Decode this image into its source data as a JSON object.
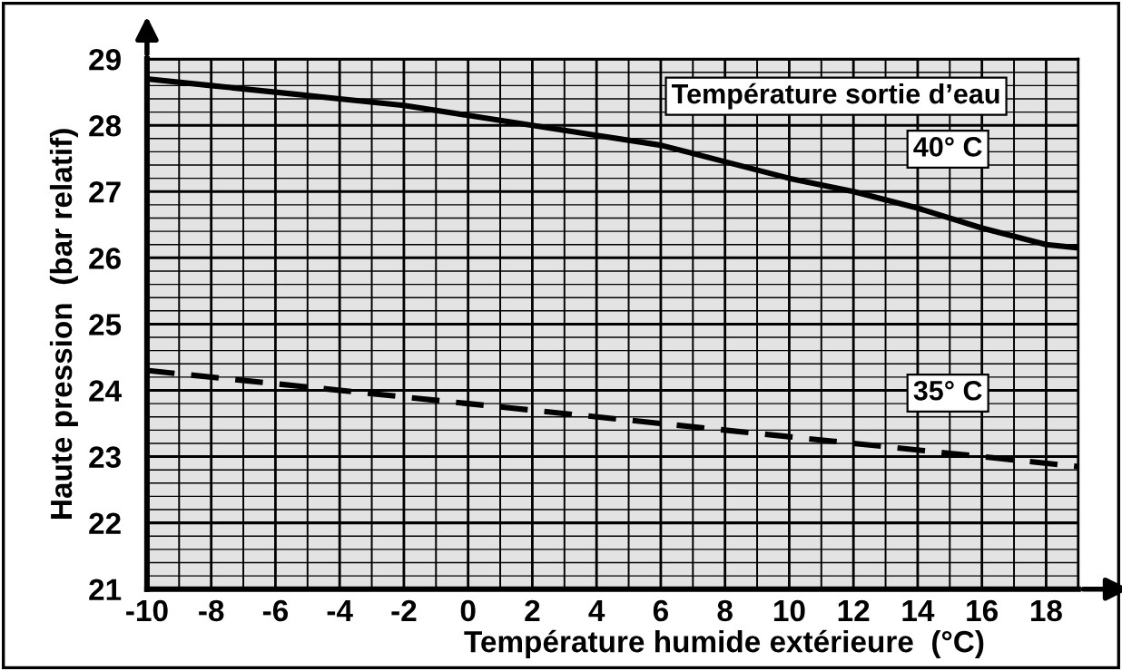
{
  "chart_data": {
    "type": "line",
    "xlabel": "Température humide extérieure  (°C)",
    "ylabel": "Haute pression  (bar relatif)",
    "annotations": [
      "Température sortie d’eau"
    ],
    "xlim": [
      -10,
      19
    ],
    "ylim": [
      21,
      29
    ],
    "xticks": [
      -10,
      -8,
      -6,
      -4,
      -2,
      0,
      2,
      4,
      6,
      8,
      10,
      12,
      14,
      16,
      18
    ],
    "yticks": [
      21,
      22,
      23,
      24,
      25,
      26,
      27,
      28,
      29
    ],
    "grid": true,
    "series": [
      {
        "name": "40° C",
        "color": "#000000",
        "line_style": "solid",
        "x": [
          -10,
          -8,
          -6,
          -4,
          -2,
          0,
          2,
          4,
          6,
          8,
          10,
          12,
          14,
          16,
          18,
          19
        ],
        "values": [
          28.7,
          28.6,
          28.5,
          28.4,
          28.3,
          28.15,
          28.0,
          27.85,
          27.7,
          27.45,
          27.2,
          27.0,
          26.75,
          26.45,
          26.2,
          26.15
        ]
      },
      {
        "name": "35° C",
        "color": "#000000",
        "line_style": "dashed",
        "x": [
          -10,
          -5,
          0,
          5,
          10,
          15,
          19
        ],
        "values": [
          24.3,
          24.05,
          23.8,
          23.55,
          23.3,
          23.05,
          22.85
        ]
      }
    ]
  }
}
